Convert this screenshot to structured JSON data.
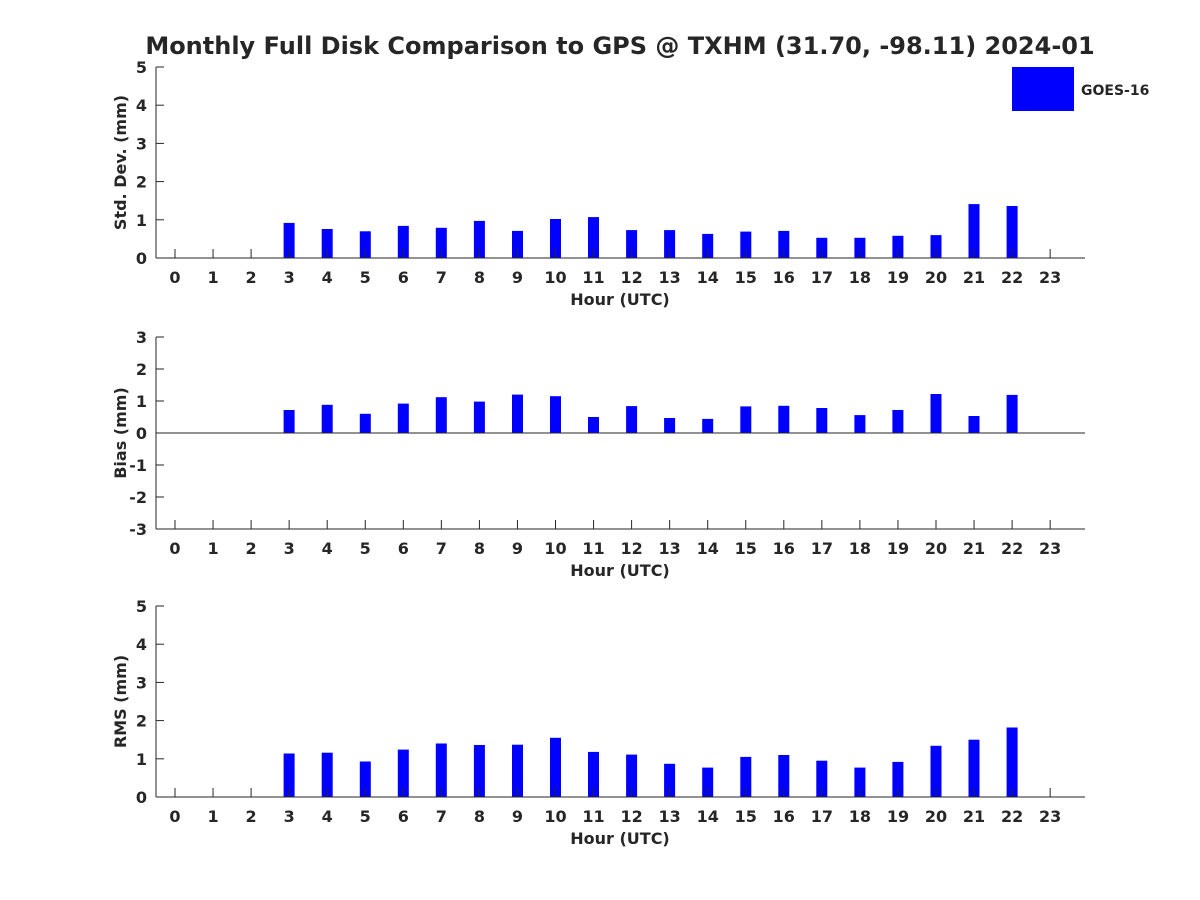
{
  "figure": {
    "title": "Monthly Full Disk Comparison to GPS @ TXHM (31.70, -98.11) 2024-01",
    "legend_label": "GOES-16",
    "bar_color": "#0000ff"
  },
  "chart_data": [
    {
      "type": "bar",
      "title": "",
      "xlabel": "Hour (UTC)",
      "ylabel": "Std. Dev. (mm)",
      "categories": [
        "0",
        "1",
        "2",
        "3",
        "4",
        "5",
        "6",
        "7",
        "8",
        "9",
        "10",
        "11",
        "12",
        "13",
        "14",
        "15",
        "16",
        "17",
        "18",
        "19",
        "20",
        "21",
        "22",
        "23"
      ],
      "series": [
        {
          "name": "GOES-16",
          "values": [
            null,
            null,
            null,
            0.92,
            0.76,
            0.7,
            0.84,
            0.79,
            0.97,
            0.71,
            1.02,
            1.07,
            0.73,
            0.73,
            0.63,
            0.69,
            0.71,
            0.53,
            0.53,
            0.58,
            0.6,
            1.41,
            1.36,
            null
          ]
        }
      ],
      "ylim": [
        0,
        5
      ],
      "yticks": [
        0,
        1,
        2,
        3,
        4,
        5
      ],
      "legend": "top-right",
      "grid": false
    },
    {
      "type": "bar",
      "title": "",
      "xlabel": "Hour (UTC)",
      "ylabel": "Bias (mm)",
      "categories": [
        "0",
        "1",
        "2",
        "3",
        "4",
        "5",
        "6",
        "7",
        "8",
        "9",
        "10",
        "11",
        "12",
        "13",
        "14",
        "15",
        "16",
        "17",
        "18",
        "19",
        "20",
        "21",
        "22",
        "23"
      ],
      "series": [
        {
          "name": "GOES-16",
          "values": [
            null,
            null,
            null,
            0.72,
            0.88,
            0.6,
            0.92,
            1.12,
            0.98,
            1.2,
            1.15,
            0.5,
            0.84,
            0.47,
            0.44,
            0.83,
            0.85,
            0.78,
            0.56,
            0.72,
            1.22,
            0.53,
            1.19,
            null
          ]
        }
      ],
      "ylim": [
        -3,
        3
      ],
      "yticks": [
        -3,
        -2,
        -1,
        0,
        1,
        2,
        3
      ],
      "zero_line": true,
      "grid": false
    },
    {
      "type": "bar",
      "title": "",
      "xlabel": "Hour (UTC)",
      "ylabel": "RMS (mm)",
      "categories": [
        "0",
        "1",
        "2",
        "3",
        "4",
        "5",
        "6",
        "7",
        "8",
        "9",
        "10",
        "11",
        "12",
        "13",
        "14",
        "15",
        "16",
        "17",
        "18",
        "19",
        "20",
        "21",
        "22",
        "23"
      ],
      "series": [
        {
          "name": "GOES-16",
          "values": [
            null,
            null,
            null,
            1.14,
            1.16,
            0.93,
            1.24,
            1.4,
            1.36,
            1.37,
            1.55,
            1.18,
            1.11,
            0.87,
            0.77,
            1.05,
            1.1,
            0.95,
            0.77,
            0.92,
            1.34,
            1.5,
            1.82,
            null
          ]
        }
      ],
      "ylim": [
        0,
        5
      ],
      "yticks": [
        0,
        1,
        2,
        3,
        4,
        5
      ],
      "grid": false
    }
  ]
}
